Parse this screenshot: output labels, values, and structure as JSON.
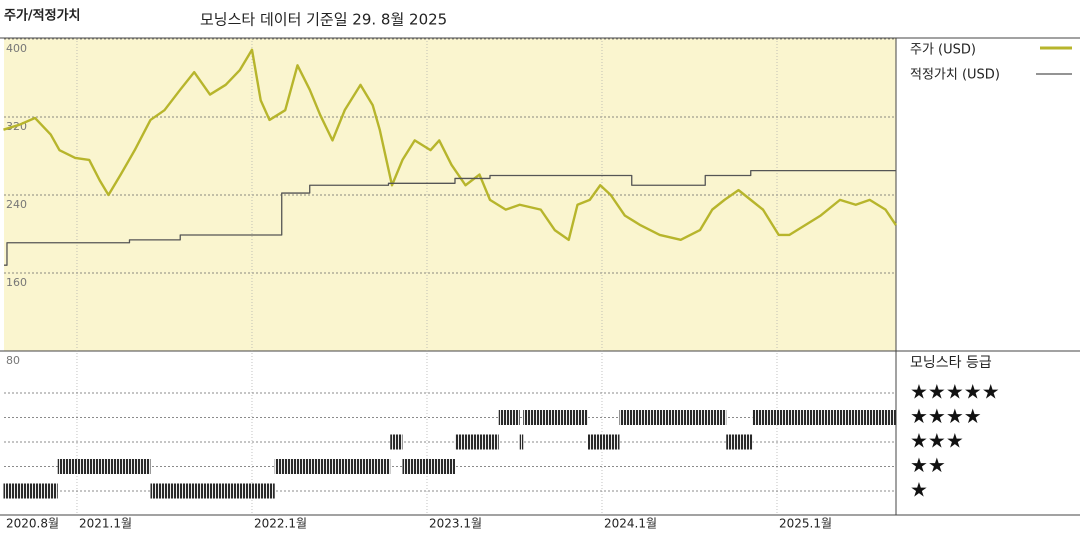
{
  "chart_data": {
    "type": "line",
    "title": "주가/적정가치",
    "subtitle": "모닝스타 데이터 기준일 29. 8월 2025",
    "xlim": [
      2020.583,
      2025.68
    ],
    "xticks": [
      {
        "value": 2020.583,
        "label": "2020.8월"
      },
      {
        "value": 2021.0,
        "label": "2021.1월"
      },
      {
        "value": 2022.0,
        "label": "2022.1월"
      },
      {
        "value": 2023.0,
        "label": "2023.1월"
      },
      {
        "value": 2024.0,
        "label": "2024.1월"
      },
      {
        "value": 2025.0,
        "label": "2025.1월"
      }
    ],
    "ylim": [
      80,
      400
    ],
    "yticks": [
      80,
      160,
      240,
      320,
      400
    ],
    "grid": true,
    "series": [
      {
        "name": "주가 (USD)",
        "color": "#b7b52c",
        "x": [
          2020.58,
          2020.67,
          2020.76,
          2020.85,
          2020.9,
          2020.99,
          2021.07,
          2021.13,
          2021.18,
          2021.25,
          2021.33,
          2021.42,
          2021.5,
          2021.59,
          2021.67,
          2021.76,
          2021.85,
          2021.93,
          2022.0,
          2022.05,
          2022.1,
          2022.19,
          2022.26,
          2022.33,
          2022.39,
          2022.46,
          2022.53,
          2022.62,
          2022.69,
          2022.73,
          2022.8,
          2022.86,
          2022.93,
          2023.02,
          2023.07,
          2023.14,
          2023.22,
          2023.3,
          2023.36,
          2023.45,
          2023.53,
          2023.65,
          2023.73,
          2023.81,
          2023.86,
          2023.93,
          2023.99,
          2024.05,
          2024.13,
          2024.22,
          2024.33,
          2024.45,
          2024.56,
          2024.63,
          2024.7,
          2024.78,
          2024.85,
          2024.92,
          2025.01,
          2025.07,
          2025.16,
          2025.25,
          2025.36,
          2025.45,
          2025.53,
          2025.62,
          2025.68
        ],
        "values": [
          307,
          312,
          319,
          302,
          286,
          278,
          276,
          255,
          240,
          261,
          286,
          317,
          327,
          348,
          366,
          343,
          353,
          368,
          389,
          337,
          317,
          327,
          373,
          348,
          322,
          296,
          327,
          353,
          332,
          307,
          250,
          276,
          296,
          286,
          296,
          271,
          250,
          261,
          235,
          225,
          230,
          225,
          204,
          194,
          230,
          235,
          250,
          240,
          219,
          209,
          199,
          194,
          204,
          225,
          235,
          245,
          235,
          225,
          199,
          199,
          209,
          219,
          235,
          230,
          235,
          225,
          209
        ]
      },
      {
        "name": "적정가치 (USD)",
        "color": "#555555",
        "step": true,
        "x": [
          2020.583,
          2020.6,
          2021.3,
          2021.59,
          2022.17,
          2022.33,
          2022.78,
          2023.16,
          2023.36,
          2024.17,
          2024.59,
          2024.85
        ],
        "values": [
          168,
          191,
          194,
          199,
          242,
          250,
          252,
          257,
          260,
          250,
          260,
          265
        ]
      }
    ],
    "rating_title": "모닝스타 등급",
    "rating_labels": [
      "★",
      "★★",
      "★★★",
      "★★★★",
      "★★★★★"
    ],
    "ratings": {
      "starts": [
        2020.58,
        2020.89,
        2021.42,
        2022.13,
        2022.79,
        2022.86,
        2023.16,
        2023.41,
        2023.53,
        2023.55,
        2023.92,
        2024.1,
        2024.71,
        2024.86
      ],
      "ends": [
        2020.89,
        2021.42,
        2022.13,
        2022.79,
        2022.86,
        2023.16,
        2023.41,
        2023.53,
        2023.55,
        2023.92,
        2024.1,
        2024.71,
        2024.86,
        2025.68
      ],
      "stars": [
        1,
        2,
        1,
        2,
        3,
        2,
        3,
        4,
        3,
        4,
        3,
        4,
        3,
        4
      ]
    }
  }
}
